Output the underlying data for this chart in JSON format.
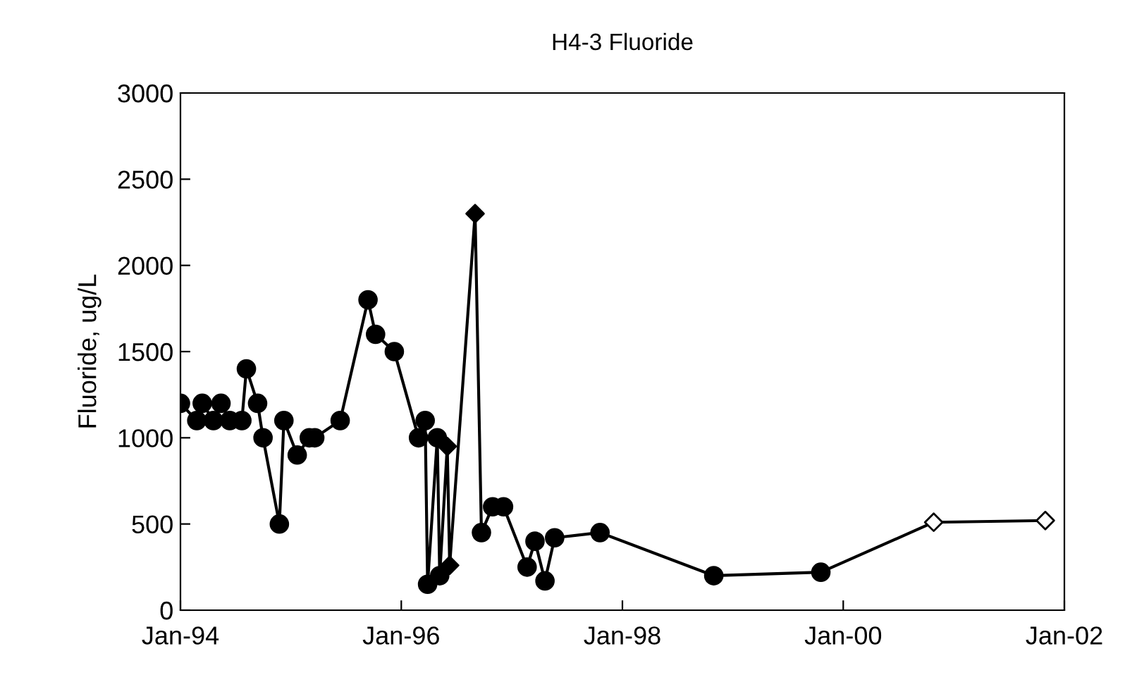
{
  "chart_data": {
    "type": "line",
    "title": "H4-3 Fluoride",
    "ylabel": "Fluoride, ug/L",
    "xlim": [
      "1994-01-01",
      "2002-01-01"
    ],
    "ylim": [
      0,
      3000
    ],
    "xticks": [
      {
        "value": "1994-01-01",
        "label": "Jan-94"
      },
      {
        "value": "1996-01-01",
        "label": "Jan-96"
      },
      {
        "value": "1998-01-01",
        "label": "Jan-98"
      },
      {
        "value": "2000-01-01",
        "label": "Jan-00"
      },
      {
        "value": "2002-01-01",
        "label": "Jan-02"
      }
    ],
    "yticks": [
      0,
      500,
      1000,
      1500,
      2000,
      2500,
      3000
    ],
    "grid": false,
    "legend": false,
    "series": [
      {
        "marker": "none",
        "color": "#000000",
        "x": [
          "1994-01-01",
          "1994-02-24",
          "1994-03-14",
          "1994-04-20",
          "1994-05-15",
          "1994-06-13",
          "1994-07-23",
          "1994-08-07",
          "1994-09-13",
          "1994-10-01",
          "1994-11-24",
          "1994-12-09",
          "1995-01-22",
          "1995-03-03",
          "1995-03-21",
          "1995-06-13",
          "1995-09-13",
          "1995-10-08",
          "1995-12-09",
          "1996-02-27",
          "1996-03-20",
          "1996-03-28",
          "1996-04-29",
          "1996-05-07",
          "1996-06-01",
          "1996-06-09",
          "1996-09-01",
          "1996-09-22",
          "1996-10-29",
          "1996-12-04",
          "1997-02-20",
          "1997-03-18",
          "1997-04-20",
          "1997-05-22",
          "1997-10-19",
          "1998-10-30",
          "1999-10-19",
          "2000-10-26",
          "2001-10-30"
        ],
        "values": [
          1200,
          1100,
          1200,
          1100,
          1200,
          1100,
          1100,
          1400,
          1200,
          1000,
          500,
          1100,
          900,
          1000,
          1000,
          1100,
          1800,
          1600,
          1500,
          1000,
          1100,
          150,
          1000,
          200,
          950,
          260,
          2300,
          450,
          600,
          600,
          250,
          400,
          170,
          420,
          450,
          200,
          220,
          510,
          520
        ]
      },
      {
        "type": "scatter",
        "marker": "circle",
        "color": "#000000",
        "x": [
          "1994-01-01",
          "1994-02-24",
          "1994-03-14",
          "1994-04-20",
          "1994-05-15",
          "1994-06-13",
          "1994-07-23",
          "1994-08-07",
          "1994-09-13",
          "1994-10-01",
          "1994-11-24",
          "1994-12-09",
          "1995-01-22",
          "1995-03-03",
          "1995-03-21",
          "1995-06-13",
          "1995-09-13",
          "1995-10-08",
          "1995-12-09",
          "1996-02-27",
          "1996-03-20",
          "1996-03-28",
          "1996-04-29",
          "1996-05-07",
          "1996-09-22",
          "1996-10-29",
          "1996-12-04",
          "1997-02-20",
          "1997-03-18",
          "1997-04-20",
          "1997-05-22",
          "1997-10-19",
          "1998-10-30",
          "1999-10-19"
        ],
        "values": [
          1200,
          1100,
          1200,
          1100,
          1200,
          1100,
          1100,
          1400,
          1200,
          1000,
          500,
          1100,
          900,
          1000,
          1000,
          1100,
          1800,
          1600,
          1500,
          1000,
          1100,
          150,
          1000,
          200,
          450,
          600,
          600,
          250,
          400,
          170,
          420,
          450,
          200,
          220
        ]
      },
      {
        "type": "scatter",
        "marker": "diamond",
        "color": "#000000",
        "x": [
          "1996-06-01",
          "1996-06-09",
          "1996-09-01"
        ],
        "values": [
          950,
          260,
          2300
        ]
      },
      {
        "type": "scatter",
        "marker": "diamond",
        "color": "#ffffff",
        "x": [
          "2000-10-26",
          "2001-10-30"
        ],
        "values": [
          510,
          520
        ]
      }
    ]
  }
}
